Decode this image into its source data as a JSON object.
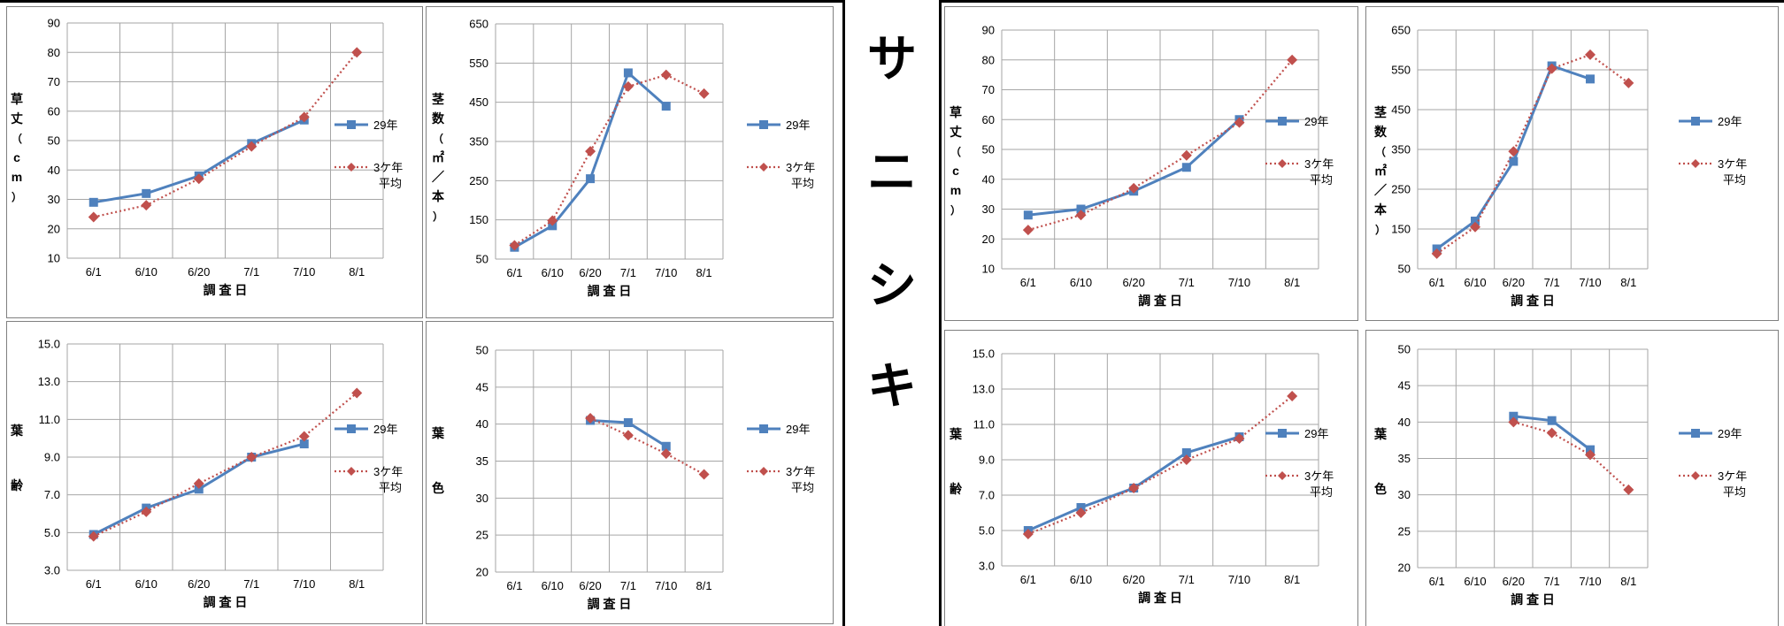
{
  "center_title": [
    "サ",
    "ニ",
    "シ",
    "キ"
  ],
  "colors": {
    "series_current": "#4F81BD",
    "series_avg": "#C0504D",
    "grid": "#A6A6A6",
    "frame": "#808080"
  },
  "chart_data": [
    {
      "type": "line",
      "categories": [
        "6/1",
        "6/10",
        "6/20",
        "7/1",
        "7/10",
        "8/1"
      ],
      "xlabel": "調 査 日",
      "ylabel": [
        "草",
        "丈",
        "（",
        "c",
        "m",
        "）"
      ],
      "yticks": [
        "10",
        "20",
        "30",
        "40",
        "50",
        "60",
        "70",
        "80",
        "90"
      ],
      "ylim": [
        10,
        90
      ],
      "series": [
        {
          "name": "29年",
          "values": [
            29,
            32,
            38,
            49,
            57,
            null
          ]
        },
        {
          "name": "3ケ年平均",
          "legend_lines": [
            "3ケ年",
            "平均"
          ],
          "values": [
            24,
            28,
            37,
            48,
            58,
            80
          ]
        }
      ]
    },
    {
      "type": "line",
      "categories": [
        "6/1",
        "6/10",
        "6/20",
        "7/1",
        "7/10",
        "8/1"
      ],
      "xlabel": "調 査 日",
      "ylabel": [
        "茎",
        "数",
        "（",
        "㎡",
        "／",
        "本",
        "）"
      ],
      "yticks": [
        "50",
        "150",
        "250",
        "350",
        "450",
        "550",
        "650"
      ],
      "ylim": [
        50,
        650
      ],
      "series": [
        {
          "name": "29年",
          "values": [
            80,
            135,
            255,
            525,
            440,
            null
          ]
        },
        {
          "name": "3ケ年平均",
          "legend_lines": [
            "3ケ年",
            "平均"
          ],
          "values": [
            85,
            148,
            325,
            490,
            520,
            472
          ]
        }
      ]
    },
    {
      "type": "line",
      "categories": [
        "6/1",
        "6/10",
        "6/20",
        "7/1",
        "7/10",
        "8/1"
      ],
      "xlabel": "調 査 日",
      "ylabel": [
        "葉",
        "齢"
      ],
      "yticks": [
        "3.0",
        "5.0",
        "7.0",
        "9.0",
        "11.0",
        "13.0",
        "15.0"
      ],
      "ylim": [
        3,
        15
      ],
      "series": [
        {
          "name": "29年",
          "values": [
            4.9,
            6.3,
            7.3,
            9.0,
            9.7,
            null
          ]
        },
        {
          "name": "3ケ年平均",
          "legend_lines": [
            "3ケ年",
            "平均"
          ],
          "values": [
            4.8,
            6.1,
            7.6,
            9.0,
            10.1,
            12.4
          ]
        }
      ]
    },
    {
      "type": "line",
      "categories": [
        "6/1",
        "6/10",
        "6/20",
        "7/1",
        "7/10",
        "8/1"
      ],
      "xlabel": "調 査 日",
      "ylabel": [
        "葉",
        "色"
      ],
      "yticks": [
        "20",
        "25",
        "30",
        "35",
        "40",
        "45",
        "50"
      ],
      "ylim": [
        20,
        50
      ],
      "series": [
        {
          "name": "29年",
          "values": [
            null,
            null,
            40.5,
            40.2,
            37.0,
            null
          ]
        },
        {
          "name": "3ケ年平均",
          "legend_lines": [
            "3ケ年",
            "平均"
          ],
          "values": [
            null,
            null,
            40.8,
            38.5,
            36.0,
            33.2
          ]
        }
      ]
    },
    {
      "type": "line",
      "categories": [
        "6/1",
        "6/10",
        "6/20",
        "7/1",
        "7/10",
        "8/1"
      ],
      "xlabel": "調 査 日",
      "ylabel": [
        "草",
        "丈",
        "（",
        "c",
        "m",
        "）"
      ],
      "yticks": [
        "10",
        "20",
        "30",
        "40",
        "50",
        "60",
        "70",
        "80",
        "90"
      ],
      "ylim": [
        10,
        90
      ],
      "series": [
        {
          "name": "29年",
          "values": [
            28,
            30,
            36,
            44,
            60,
            null
          ]
        },
        {
          "name": "3ケ年平均",
          "legend_lines": [
            "3ケ年",
            "平均"
          ],
          "values": [
            23,
            28,
            37,
            48,
            59,
            80
          ]
        }
      ]
    },
    {
      "type": "line",
      "categories": [
        "6/1",
        "6/10",
        "6/20",
        "7/1",
        "7/10",
        "8/1"
      ],
      "xlabel": "調 査 日",
      "ylabel": [
        "茎",
        "数",
        "（",
        "㎡",
        "／",
        "本",
        "）"
      ],
      "yticks": [
        "50",
        "150",
        "250",
        "350",
        "450",
        "550",
        "650"
      ],
      "ylim": [
        50,
        650
      ],
      "series": [
        {
          "name": "29年",
          "values": [
            100,
            170,
            320,
            560,
            527,
            null
          ]
        },
        {
          "name": "3ケ年平均",
          "legend_lines": [
            "3ケ年",
            "平均"
          ],
          "values": [
            88,
            155,
            345,
            553,
            588,
            517
          ]
        }
      ]
    },
    {
      "type": "line",
      "categories": [
        "6/1",
        "6/10",
        "6/20",
        "7/1",
        "7/10",
        "8/1"
      ],
      "xlabel": "調 査 日",
      "ylabel": [
        "葉",
        "齢"
      ],
      "yticks": [
        "3.0",
        "5.0",
        "7.0",
        "9.0",
        "11.0",
        "13.0",
        "15.0"
      ],
      "ylim": [
        3,
        15
      ],
      "series": [
        {
          "name": "29年",
          "values": [
            5.0,
            6.3,
            7.4,
            9.4,
            10.3,
            null
          ]
        },
        {
          "name": "3ケ年平均",
          "legend_lines": [
            "3ケ年",
            "平均"
          ],
          "values": [
            4.8,
            6.0,
            7.4,
            9.0,
            10.2,
            12.6
          ]
        }
      ]
    },
    {
      "type": "line",
      "categories": [
        "6/1",
        "6/10",
        "6/20",
        "7/1",
        "7/10",
        "8/1"
      ],
      "xlabel": "調 査 日",
      "ylabel": [
        "葉",
        "色"
      ],
      "yticks": [
        "20",
        "25",
        "30",
        "35",
        "40",
        "45",
        "50"
      ],
      "ylim": [
        20,
        50
      ],
      "series": [
        {
          "name": "29年",
          "values": [
            null,
            null,
            40.8,
            40.2,
            36.2,
            null
          ]
        },
        {
          "name": "3ケ年平均",
          "legend_lines": [
            "3ケ年",
            "平均"
          ],
          "values": [
            null,
            null,
            40.0,
            38.5,
            35.5,
            30.7
          ]
        }
      ]
    }
  ]
}
